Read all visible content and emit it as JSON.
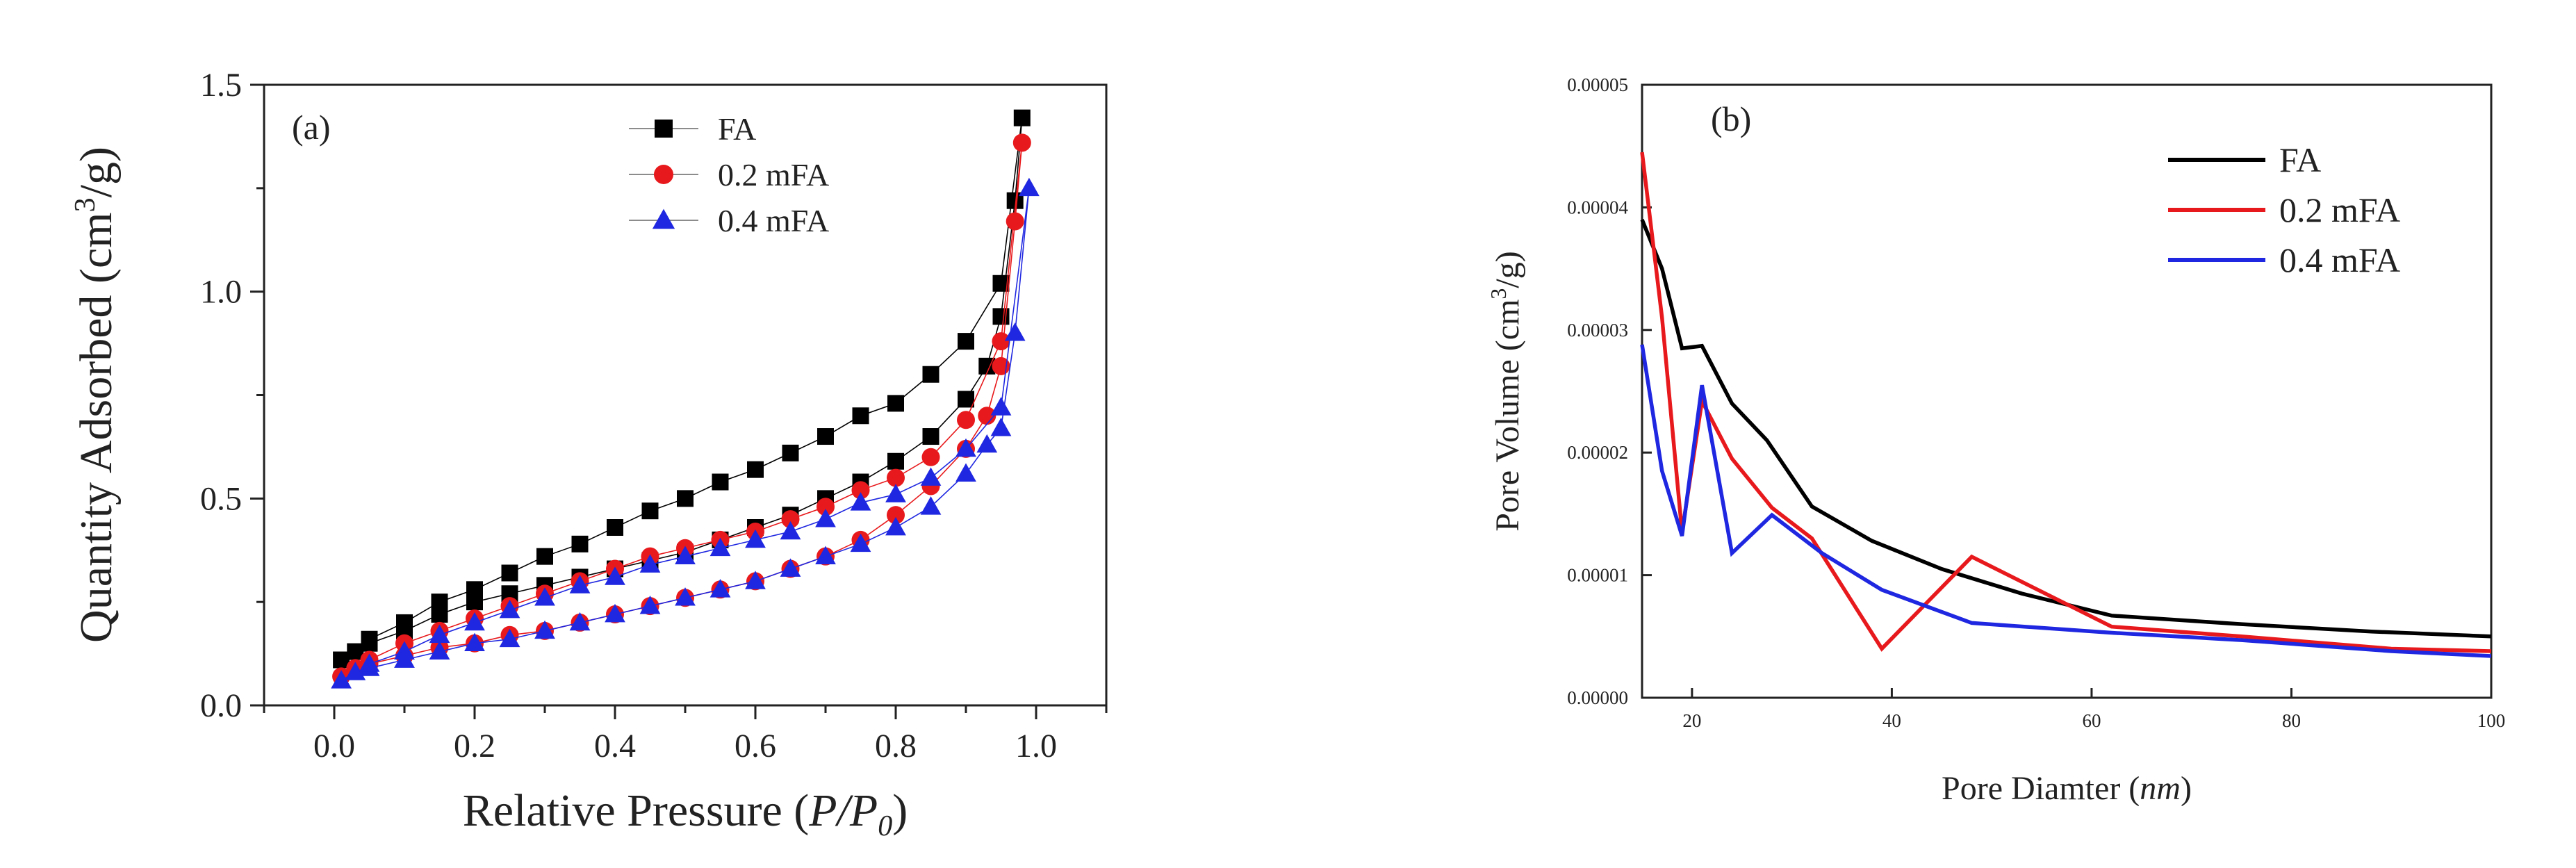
{
  "chart_data": [
    {
      "panel": "(a)",
      "type": "scatter",
      "title": "",
      "xlabel_prefix": "Relative Pressure (",
      "xlabel_var": "P/P",
      "xlabel_sub": "0",
      "xlabel_suffix": ")",
      "ylabel": "Quantity Adsorbed (cm",
      "ylabel_sup": "3",
      "ylabel_suffix": "/g)",
      "xlim": [
        -0.1,
        1.1
      ],
      "ylim": [
        0.0,
        1.5
      ],
      "xticks": [
        0.0,
        0.2,
        0.4,
        0.6,
        0.8,
        1.0
      ],
      "xtick_labels": [
        "0.0",
        "0.2",
        "0.4",
        "0.6",
        "0.8",
        "1.0"
      ],
      "yticks": [
        0.0,
        0.5,
        1.0,
        1.5
      ],
      "ytick_labels": [
        "0.0",
        "0.5",
        "1.0",
        "1.5"
      ],
      "legend_position": "top-center",
      "series": [
        {
          "name": "FA",
          "marker": "square",
          "color": "#000000",
          "points": [
            [
              0.01,
              0.11
            ],
            [
              0.03,
              0.13
            ],
            [
              0.05,
              0.15
            ],
            [
              0.1,
              0.18
            ],
            [
              0.15,
              0.22
            ],
            [
              0.2,
              0.25
            ],
            [
              0.25,
              0.27
            ],
            [
              0.3,
              0.29
            ],
            [
              0.35,
              0.31
            ],
            [
              0.4,
              0.33
            ],
            [
              0.45,
              0.35
            ],
            [
              0.5,
              0.37
            ],
            [
              0.55,
              0.4
            ],
            [
              0.6,
              0.43
            ],
            [
              0.65,
              0.46
            ],
            [
              0.7,
              0.5
            ],
            [
              0.75,
              0.54
            ],
            [
              0.8,
              0.59
            ],
            [
              0.85,
              0.65
            ],
            [
              0.9,
              0.74
            ],
            [
              0.93,
              0.82
            ],
            [
              0.95,
              0.94
            ],
            [
              0.97,
              1.22
            ],
            [
              0.98,
              1.42
            ],
            [
              0.95,
              1.02
            ],
            [
              0.9,
              0.88
            ],
            [
              0.85,
              0.8
            ],
            [
              0.8,
              0.73
            ],
            [
              0.75,
              0.7
            ],
            [
              0.7,
              0.65
            ],
            [
              0.65,
              0.61
            ],
            [
              0.6,
              0.57
            ],
            [
              0.55,
              0.54
            ],
            [
              0.5,
              0.5
            ],
            [
              0.45,
              0.47
            ],
            [
              0.4,
              0.43
            ],
            [
              0.35,
              0.39
            ],
            [
              0.3,
              0.36
            ],
            [
              0.25,
              0.32
            ],
            [
              0.2,
              0.28
            ],
            [
              0.15,
              0.25
            ],
            [
              0.1,
              0.2
            ],
            [
              0.05,
              0.16
            ]
          ]
        },
        {
          "name": "0.2 mFA",
          "marker": "circle",
          "color": "#e8191c",
          "points": [
            [
              0.01,
              0.07
            ],
            [
              0.03,
              0.09
            ],
            [
              0.05,
              0.1
            ],
            [
              0.1,
              0.12
            ],
            [
              0.15,
              0.14
            ],
            [
              0.2,
              0.15
            ],
            [
              0.25,
              0.17
            ],
            [
              0.3,
              0.18
            ],
            [
              0.35,
              0.2
            ],
            [
              0.4,
              0.22
            ],
            [
              0.45,
              0.24
            ],
            [
              0.5,
              0.26
            ],
            [
              0.55,
              0.28
            ],
            [
              0.6,
              0.3
            ],
            [
              0.65,
              0.33
            ],
            [
              0.7,
              0.36
            ],
            [
              0.75,
              0.4
            ],
            [
              0.8,
              0.46
            ],
            [
              0.85,
              0.53
            ],
            [
              0.9,
              0.62
            ],
            [
              0.93,
              0.7
            ],
            [
              0.95,
              0.82
            ],
            [
              0.97,
              1.17
            ],
            [
              0.98,
              1.36
            ],
            [
              0.95,
              0.88
            ],
            [
              0.9,
              0.69
            ],
            [
              0.85,
              0.6
            ],
            [
              0.8,
              0.55
            ],
            [
              0.75,
              0.52
            ],
            [
              0.7,
              0.48
            ],
            [
              0.65,
              0.45
            ],
            [
              0.6,
              0.42
            ],
            [
              0.55,
              0.4
            ],
            [
              0.5,
              0.38
            ],
            [
              0.45,
              0.36
            ],
            [
              0.4,
              0.33
            ],
            [
              0.35,
              0.3
            ],
            [
              0.3,
              0.27
            ],
            [
              0.25,
              0.24
            ],
            [
              0.2,
              0.21
            ],
            [
              0.15,
              0.18
            ],
            [
              0.1,
              0.15
            ],
            [
              0.05,
              0.11
            ]
          ]
        },
        {
          "name": "0.4 mFA",
          "marker": "triangle",
          "color": "#1f27e0",
          "points": [
            [
              0.01,
              0.06
            ],
            [
              0.03,
              0.08
            ],
            [
              0.05,
              0.09
            ],
            [
              0.1,
              0.11
            ],
            [
              0.15,
              0.13
            ],
            [
              0.2,
              0.15
            ],
            [
              0.25,
              0.16
            ],
            [
              0.3,
              0.18
            ],
            [
              0.35,
              0.2
            ],
            [
              0.4,
              0.22
            ],
            [
              0.45,
              0.24
            ],
            [
              0.5,
              0.26
            ],
            [
              0.55,
              0.28
            ],
            [
              0.6,
              0.3
            ],
            [
              0.65,
              0.33
            ],
            [
              0.7,
              0.36
            ],
            [
              0.75,
              0.39
            ],
            [
              0.8,
              0.43
            ],
            [
              0.85,
              0.48
            ],
            [
              0.9,
              0.56
            ],
            [
              0.93,
              0.63
            ],
            [
              0.95,
              0.67
            ],
            [
              0.97,
              0.9
            ],
            [
              0.99,
              1.25
            ],
            [
              0.95,
              0.72
            ],
            [
              0.9,
              0.62
            ],
            [
              0.85,
              0.55
            ],
            [
              0.8,
              0.51
            ],
            [
              0.75,
              0.49
            ],
            [
              0.7,
              0.45
            ],
            [
              0.65,
              0.42
            ],
            [
              0.6,
              0.4
            ],
            [
              0.55,
              0.38
            ],
            [
              0.5,
              0.36
            ],
            [
              0.45,
              0.34
            ],
            [
              0.4,
              0.31
            ],
            [
              0.35,
              0.29
            ],
            [
              0.3,
              0.26
            ],
            [
              0.25,
              0.23
            ],
            [
              0.2,
              0.2
            ],
            [
              0.15,
              0.17
            ],
            [
              0.1,
              0.13
            ],
            [
              0.05,
              0.1
            ]
          ]
        }
      ]
    },
    {
      "panel": "(b)",
      "type": "line",
      "title": "",
      "xlabel_prefix": "Pore Diamter (",
      "xlabel_var": "nm",
      "xlabel_suffix": ")",
      "ylabel": "Pore Volume (cm",
      "ylabel_sup": "3",
      "ylabel_suffix": "/g)",
      "xlim": [
        15,
        100
      ],
      "ylim": [
        0.0,
        5e-05
      ],
      "xticks": [
        20,
        40,
        60,
        80,
        100
      ],
      "xtick_labels": [
        "20",
        "40",
        "60",
        "80",
        "100"
      ],
      "yticks": [
        0.0,
        1e-05,
        2e-05,
        3e-05,
        4e-05,
        5e-05
      ],
      "ytick_labels": [
        "0.00000",
        "0.00001",
        "0.00002",
        "0.00003",
        "0.00004",
        "0.00005"
      ],
      "legend_position": "top-right",
      "series": [
        {
          "name": "FA",
          "color": "#000000",
          "points": [
            [
              15,
              3.9e-05
            ],
            [
              17,
              3.5e-05
            ],
            [
              19,
              2.85e-05
            ],
            [
              21,
              2.87e-05
            ],
            [
              24,
              2.4e-05
            ],
            [
              27.5,
              2.1e-05
            ],
            [
              32,
              1.56e-05
            ],
            [
              38,
              1.28e-05
            ],
            [
              45,
              1.05e-05
            ],
            [
              53,
              8.5e-06
            ],
            [
              62,
              6.7e-06
            ],
            [
              75,
              6e-06
            ],
            [
              88,
              5.4e-06
            ],
            [
              100,
              5e-06
            ]
          ]
        },
        {
          "name": "0.2 mFA",
          "color": "#e8191c",
          "points": [
            [
              15,
              4.45e-05
            ],
            [
              17,
              3.1e-05
            ],
            [
              19,
              1.35e-05
            ],
            [
              21,
              2.42e-05
            ],
            [
              24,
              1.95e-05
            ],
            [
              28,
              1.55e-05
            ],
            [
              32,
              1.3e-05
            ],
            [
              39,
              4e-06
            ],
            [
              48,
              1.15e-05
            ],
            [
              62,
              5.8e-06
            ],
            [
              75,
              5e-06
            ],
            [
              90,
              4e-06
            ],
            [
              100,
              3.8e-06
            ]
          ]
        },
        {
          "name": "0.4 mFA",
          "color": "#1f27e0",
          "points": [
            [
              15,
              2.88e-05
            ],
            [
              17,
              1.85e-05
            ],
            [
              19,
              1.32e-05
            ],
            [
              21,
              2.55e-05
            ],
            [
              24,
              1.18e-05
            ],
            [
              28,
              1.49e-05
            ],
            [
              33,
              1.18e-05
            ],
            [
              39,
              8.8e-06
            ],
            [
              48,
              6.1e-06
            ],
            [
              62,
              5.3e-06
            ],
            [
              75,
              4.7e-06
            ],
            [
              90,
              3.8e-06
            ],
            [
              100,
              3.4e-06
            ]
          ]
        }
      ]
    }
  ]
}
